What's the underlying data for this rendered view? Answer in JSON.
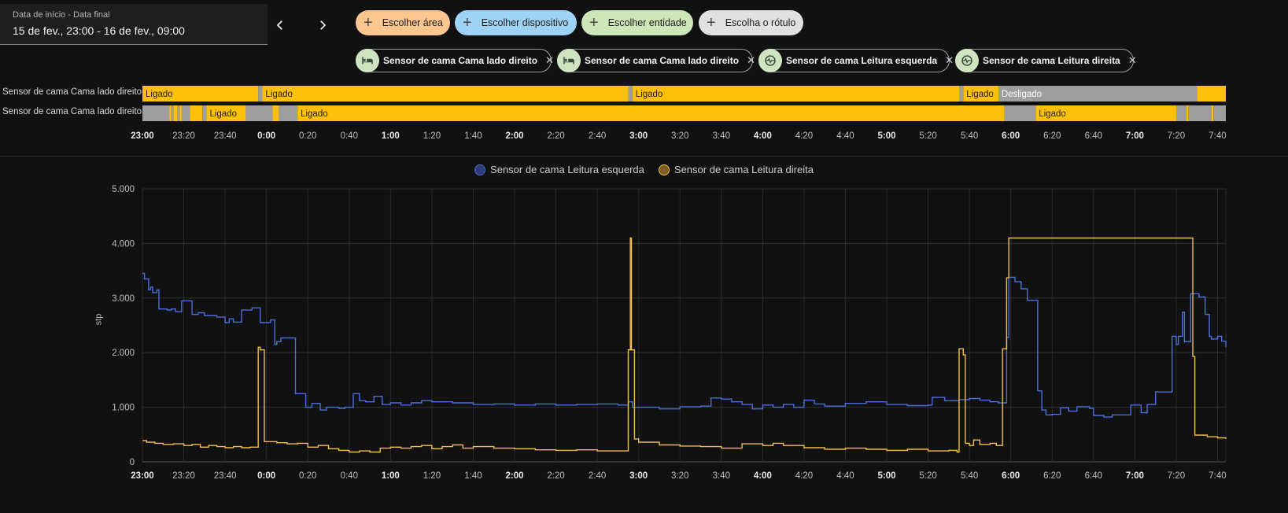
{
  "date_range": {
    "label": "Data de início - Data final",
    "value": "15 de fev., 23:00 - 16 de fev., 09:00"
  },
  "nav": {
    "prev_icon": "chevron-left-icon",
    "next_icon": "chevron-right-icon"
  },
  "pickers": [
    {
      "label": "Escolher área",
      "color": "#fcc691"
    },
    {
      "label": "Escolher dispositivo",
      "color": "#9fd3f5"
    },
    {
      "label": "Escolher entidade",
      "color": "#cde7b8"
    },
    {
      "label": "Escolha o rótulo",
      "color": "#e1e1e1"
    }
  ],
  "entities": [
    {
      "label": "Sensor de cama Cama lado direito",
      "icon": "bed-icon"
    },
    {
      "label": "Sensor de cama Cama lado direito",
      "icon": "bed-icon"
    },
    {
      "label": "Sensor de cama Leitura esquerda",
      "icon": "gauge-icon"
    },
    {
      "label": "Sensor de cama Leitura direita",
      "icon": "gauge-icon"
    }
  ],
  "colors": {
    "on": "#ffc107",
    "off": "#9e9e9e",
    "series_left": "#4a6fdc",
    "series_right": "#f4bd4a"
  },
  "x_ticks": [
    {
      "label": "23:00",
      "bold": true
    },
    {
      "label": "23:20"
    },
    {
      "label": "23:40"
    },
    {
      "label": "0:00",
      "bold": true
    },
    {
      "label": "0:20"
    },
    {
      "label": "0:40"
    },
    {
      "label": "1:00",
      "bold": true
    },
    {
      "label": "1:20"
    },
    {
      "label": "1:40"
    },
    {
      "label": "2:00",
      "bold": true
    },
    {
      "label": "2:20"
    },
    {
      "label": "2:40"
    },
    {
      "label": "3:00",
      "bold": true
    },
    {
      "label": "3:20"
    },
    {
      "label": "3:40"
    },
    {
      "label": "4:00",
      "bold": true
    },
    {
      "label": "4:20"
    },
    {
      "label": "4:40"
    },
    {
      "label": "5:00",
      "bold": true
    },
    {
      "label": "5:20"
    },
    {
      "label": "5:40"
    },
    {
      "label": "6:00",
      "bold": true
    },
    {
      "label": "6:20"
    },
    {
      "label": "6:40"
    },
    {
      "label": "7:00",
      "bold": true
    },
    {
      "label": "7:20"
    },
    {
      "label": "7:40"
    }
  ],
  "timeline": {
    "rows": [
      {
        "label": "Sensor de cama Cama lado direito",
        "segments": [
          {
            "start": "23:00",
            "end": "23:56",
            "state": "on",
            "text": "Ligado"
          },
          {
            "start": "23:56",
            "end": "23:58",
            "state": "off",
            "text": ""
          },
          {
            "start": "23:58",
            "end": "2:55",
            "state": "on",
            "text": "Ligado"
          },
          {
            "start": "2:55",
            "end": "2:57",
            "state": "off",
            "text": ""
          },
          {
            "start": "2:57",
            "end": "5:35",
            "state": "on",
            "text": "Ligado"
          },
          {
            "start": "5:35",
            "end": "5:37",
            "state": "off",
            "text": ""
          },
          {
            "start": "5:37",
            "end": "5:54",
            "state": "on",
            "text": "Ligado"
          },
          {
            "start": "5:54",
            "end": "7:30",
            "state": "off",
            "text": "Desligado"
          },
          {
            "start": "7:30",
            "end": "7:44",
            "state": "on",
            "text": ""
          }
        ]
      },
      {
        "label": "Sensor de cama Cama lado direito",
        "segments": [
          {
            "start": "23:00",
            "end": "23:13",
            "state": "off",
            "text": ""
          },
          {
            "start": "23:13",
            "end": "23:14",
            "state": "on",
            "text": ""
          },
          {
            "start": "23:14",
            "end": "23:15",
            "state": "off",
            "text": ""
          },
          {
            "start": "23:15",
            "end": "23:17",
            "state": "on",
            "text": ""
          },
          {
            "start": "23:17",
            "end": "23:18",
            "state": "off",
            "text": ""
          },
          {
            "start": "23:18",
            "end": "23:19",
            "state": "on",
            "text": ""
          },
          {
            "start": "23:19",
            "end": "23:23",
            "state": "off",
            "text": ""
          },
          {
            "start": "23:23",
            "end": "23:29",
            "state": "on",
            "text": ""
          },
          {
            "start": "23:29",
            "end": "23:31",
            "state": "off",
            "text": ""
          },
          {
            "start": "23:31",
            "end": "23:50",
            "state": "on",
            "text": "Ligado"
          },
          {
            "start": "23:50",
            "end": "0:03",
            "state": "off",
            "text": ""
          },
          {
            "start": "0:03",
            "end": "0:06",
            "state": "on",
            "text": ""
          },
          {
            "start": "0:06",
            "end": "0:15",
            "state": "off",
            "text": ""
          },
          {
            "start": "0:15",
            "end": "5:57",
            "state": "on",
            "text": "Ligado"
          },
          {
            "start": "5:57",
            "end": "6:12",
            "state": "off",
            "text": ""
          },
          {
            "start": "6:12",
            "end": "7:20",
            "state": "on",
            "text": "Ligado"
          },
          {
            "start": "7:20",
            "end": "7:25",
            "state": "off",
            "text": ""
          },
          {
            "start": "7:25",
            "end": "7:26",
            "state": "on",
            "text": ""
          },
          {
            "start": "7:26",
            "end": "7:37",
            "state": "off",
            "text": ""
          },
          {
            "start": "7:37",
            "end": "7:38",
            "state": "on",
            "text": ""
          },
          {
            "start": "7:38",
            "end": "7:44",
            "state": "off",
            "text": ""
          }
        ]
      }
    ]
  },
  "chart_data": {
    "type": "line",
    "step": true,
    "legend_position": "top-center",
    "ylabel": "stp",
    "ylim": [
      0,
      5000
    ],
    "y_ticks": [
      {
        "value": 0,
        "label": "0"
      },
      {
        "value": 1000,
        "label": "1.000"
      },
      {
        "value": 2000,
        "label": "2.000"
      },
      {
        "value": 3000,
        "label": "3.000"
      },
      {
        "value": 4000,
        "label": "4.000"
      },
      {
        "value": 5000,
        "label": "5.000"
      }
    ],
    "xlim": [
      "23:00",
      "7:44"
    ],
    "grid": true,
    "series": [
      {
        "name": "Sensor de cama Leitura esquerda",
        "points": [
          [
            "23:00",
            3450
          ],
          [
            "23:01",
            3350
          ],
          [
            "23:03",
            3150
          ],
          [
            "23:04",
            3200
          ],
          [
            "23:05",
            3100
          ],
          [
            "23:07",
            3150
          ],
          [
            "23:08",
            2800
          ],
          [
            "23:12",
            2780
          ],
          [
            "23:14",
            2800
          ],
          [
            "23:16",
            2750
          ],
          [
            "23:19",
            2950
          ],
          [
            "23:24",
            2700
          ],
          [
            "23:27",
            2730
          ],
          [
            "23:30",
            2680
          ],
          [
            "23:36",
            2650
          ],
          [
            "23:40",
            2550
          ],
          [
            "23:42",
            2620
          ],
          [
            "23:44",
            2560
          ],
          [
            "23:48",
            2780
          ],
          [
            "23:53",
            2820
          ],
          [
            "23:57",
            2550
          ],
          [
            "0:02",
            2600
          ],
          [
            "0:04",
            2150
          ],
          [
            "0:05",
            2200
          ],
          [
            "0:07",
            2270
          ],
          [
            "0:14",
            1250
          ],
          [
            "0:19",
            1000
          ],
          [
            "0:22",
            1070
          ],
          [
            "0:26",
            950
          ],
          [
            "0:29",
            1000
          ],
          [
            "0:35",
            980
          ],
          [
            "0:38",
            1000
          ],
          [
            "0:42",
            1250
          ],
          [
            "0:45",
            1120
          ],
          [
            "0:48",
            1100
          ],
          [
            "0:52",
            1200
          ],
          [
            "0:56",
            1050
          ],
          [
            "1:00",
            1080
          ],
          [
            "1:05",
            1040
          ],
          [
            "1:10",
            1080
          ],
          [
            "1:15",
            1120
          ],
          [
            "1:20",
            1100
          ],
          [
            "1:30",
            1080
          ],
          [
            "1:40",
            1050
          ],
          [
            "1:50",
            1060
          ],
          [
            "2:00",
            1040
          ],
          [
            "2:10",
            1060
          ],
          [
            "2:20",
            1040
          ],
          [
            "2:30",
            1050
          ],
          [
            "2:40",
            1060
          ],
          [
            "2:50",
            1040
          ],
          [
            "2:55",
            1100
          ],
          [
            "2:57",
            1000
          ],
          [
            "3:05",
            1000
          ],
          [
            "3:10",
            970
          ],
          [
            "3:20",
            1010
          ],
          [
            "3:30",
            1020
          ],
          [
            "3:35",
            1170
          ],
          [
            "3:40",
            1150
          ],
          [
            "3:45",
            1100
          ],
          [
            "3:50",
            1050
          ],
          [
            "3:55",
            970
          ],
          [
            "4:00",
            1040
          ],
          [
            "4:05",
            1000
          ],
          [
            "4:10",
            1050
          ],
          [
            "4:15",
            1000
          ],
          [
            "4:20",
            1130
          ],
          [
            "4:25",
            1060
          ],
          [
            "4:30",
            1020
          ],
          [
            "4:40",
            1070
          ],
          [
            "4:50",
            1100
          ],
          [
            "5:00",
            1050
          ],
          [
            "5:10",
            1030
          ],
          [
            "5:20",
            1040
          ],
          [
            "5:22",
            1180
          ],
          [
            "5:28",
            1120
          ],
          [
            "5:35",
            1140
          ],
          [
            "5:40",
            1160
          ],
          [
            "5:45",
            1130
          ],
          [
            "5:50",
            1100
          ],
          [
            "5:54",
            1080
          ],
          [
            "5:58",
            2280
          ],
          [
            "5:59",
            3380
          ],
          [
            "6:02",
            3300
          ],
          [
            "6:05",
            3170
          ],
          [
            "6:08",
            2960
          ],
          [
            "6:13",
            1300
          ],
          [
            "6:15",
            950
          ],
          [
            "6:17",
            860
          ],
          [
            "6:20",
            870
          ],
          [
            "6:24",
            990
          ],
          [
            "6:28",
            930
          ],
          [
            "6:32",
            1010
          ],
          [
            "6:38",
            980
          ],
          [
            "6:40",
            850
          ],
          [
            "6:45",
            820
          ],
          [
            "6:49",
            860
          ],
          [
            "6:55",
            860
          ],
          [
            "6:58",
            1040
          ],
          [
            "7:03",
            900
          ],
          [
            "7:06",
            1050
          ],
          [
            "7:10",
            1280
          ],
          [
            "7:18",
            2300
          ],
          [
            "7:20",
            2150
          ],
          [
            "7:21",
            2300
          ],
          [
            "7:23",
            2740
          ],
          [
            "7:24",
            2200
          ],
          [
            "7:27",
            3080
          ],
          [
            "7:31",
            3020
          ],
          [
            "7:34",
            2700
          ],
          [
            "7:36",
            2300
          ],
          [
            "7:37",
            2250
          ],
          [
            "7:40",
            2300
          ],
          [
            "7:42",
            2210
          ],
          [
            "7:44",
            2100
          ]
        ]
      },
      {
        "name": "Sensor de cama Leitura direita",
        "points": [
          [
            "23:00",
            390
          ],
          [
            "23:02",
            360
          ],
          [
            "23:06",
            340
          ],
          [
            "23:10",
            320
          ],
          [
            "23:15",
            330
          ],
          [
            "23:20",
            300
          ],
          [
            "23:24",
            320
          ],
          [
            "23:28",
            270
          ],
          [
            "23:32",
            300
          ],
          [
            "23:36",
            280
          ],
          [
            "23:40",
            260
          ],
          [
            "23:44",
            280
          ],
          [
            "23:48",
            260
          ],
          [
            "23:52",
            270
          ],
          [
            "23:56",
            2100
          ],
          [
            "23:57",
            2050
          ],
          [
            "23:59",
            370
          ],
          [
            "0:05",
            350
          ],
          [
            "0:10",
            330
          ],
          [
            "0:15",
            340
          ],
          [
            "0:20",
            270
          ],
          [
            "0:25",
            300
          ],
          [
            "0:30",
            240
          ],
          [
            "0:35",
            210
          ],
          [
            "0:40",
            180
          ],
          [
            "0:45",
            200
          ],
          [
            "0:50",
            180
          ],
          [
            "0:55",
            250
          ],
          [
            "1:00",
            270
          ],
          [
            "1:05",
            250
          ],
          [
            "1:10",
            280
          ],
          [
            "1:15",
            300
          ],
          [
            "1:20",
            240
          ],
          [
            "1:25",
            280
          ],
          [
            "1:30",
            310
          ],
          [
            "1:35",
            250
          ],
          [
            "1:40",
            280
          ],
          [
            "1:50",
            250
          ],
          [
            "2:00",
            240
          ],
          [
            "2:10",
            220
          ],
          [
            "2:20",
            210
          ],
          [
            "2:30",
            220
          ],
          [
            "2:40",
            200
          ],
          [
            "2:49",
            200
          ],
          [
            "2:55",
            2050
          ],
          [
            "2:56",
            4100
          ],
          [
            "2:56.5",
            2050
          ],
          [
            "2:58",
            420
          ],
          [
            "3:00",
            360
          ],
          [
            "3:10",
            310
          ],
          [
            "3:20",
            290
          ],
          [
            "3:30",
            280
          ],
          [
            "3:40",
            250
          ],
          [
            "3:50",
            330
          ],
          [
            "4:00",
            300
          ],
          [
            "4:05",
            340
          ],
          [
            "4:10",
            300
          ],
          [
            "4:20",
            260
          ],
          [
            "4:30",
            230
          ],
          [
            "4:40",
            250
          ],
          [
            "4:50",
            230
          ],
          [
            "5:00",
            210
          ],
          [
            "5:10",
            230
          ],
          [
            "5:20",
            200
          ],
          [
            "5:30",
            210
          ],
          [
            "5:34",
            180
          ],
          [
            "5:35",
            2070
          ],
          [
            "5:37",
            1960
          ],
          [
            "5:38",
            340
          ],
          [
            "5:40",
            300
          ],
          [
            "5:42",
            400
          ],
          [
            "5:45",
            320
          ],
          [
            "5:50",
            340
          ],
          [
            "5:53",
            300
          ],
          [
            "5:56",
            2070
          ],
          [
            "5:58",
            3370
          ],
          [
            "5:59",
            4100
          ],
          [
            "7:28",
            1930
          ],
          [
            "7:29",
            490
          ],
          [
            "7:35",
            460
          ],
          [
            "7:40",
            440
          ],
          [
            "7:44",
            420
          ]
        ]
      }
    ]
  }
}
